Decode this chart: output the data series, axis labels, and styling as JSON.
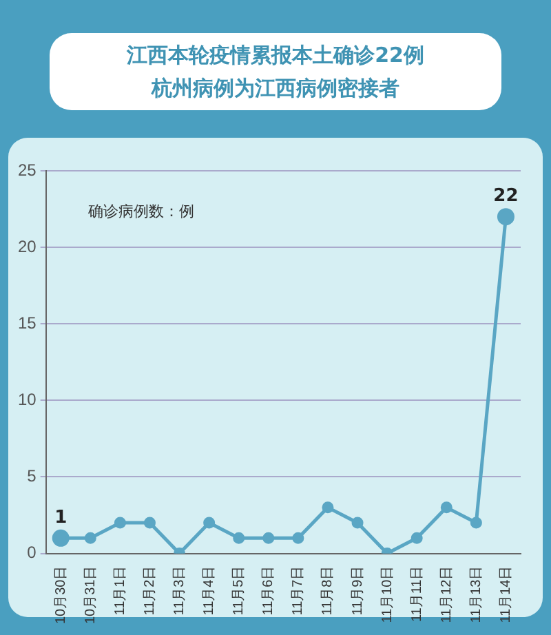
{
  "chart_data": {
    "type": "line",
    "title": "江西本轮疫情累报本土确诊22例",
    "subtitle": "杭州病例为江西病例密接者",
    "ylabel": "确诊病例数：例",
    "categories": [
      "10月30日",
      "10月31日",
      "11月1日",
      "11月2日",
      "11月3日",
      "11月4日",
      "11月5日",
      "11月6日",
      "11月7日",
      "11月8日",
      "11月9日",
      "11月10日",
      "11月11日",
      "11月12日",
      "11月13日",
      "11月14日"
    ],
    "series": [
      {
        "color": "#5aa6c4",
        "values": [
          1,
          1,
          2,
          2,
          0,
          2,
          1,
          1,
          1,
          3,
          2,
          0,
          1,
          3,
          2,
          22
        ],
        "value_labels": [
          "1",
          null,
          null,
          null,
          null,
          null,
          null,
          null,
          null,
          null,
          null,
          null,
          null,
          null,
          null,
          "22"
        ]
      }
    ],
    "ylim": [
      0,
      25
    ],
    "yticks": [
      0,
      5,
      10,
      15,
      20,
      25
    ],
    "grid": "y",
    "legend": false,
    "marker": "circle",
    "line_style": "solid"
  }
}
